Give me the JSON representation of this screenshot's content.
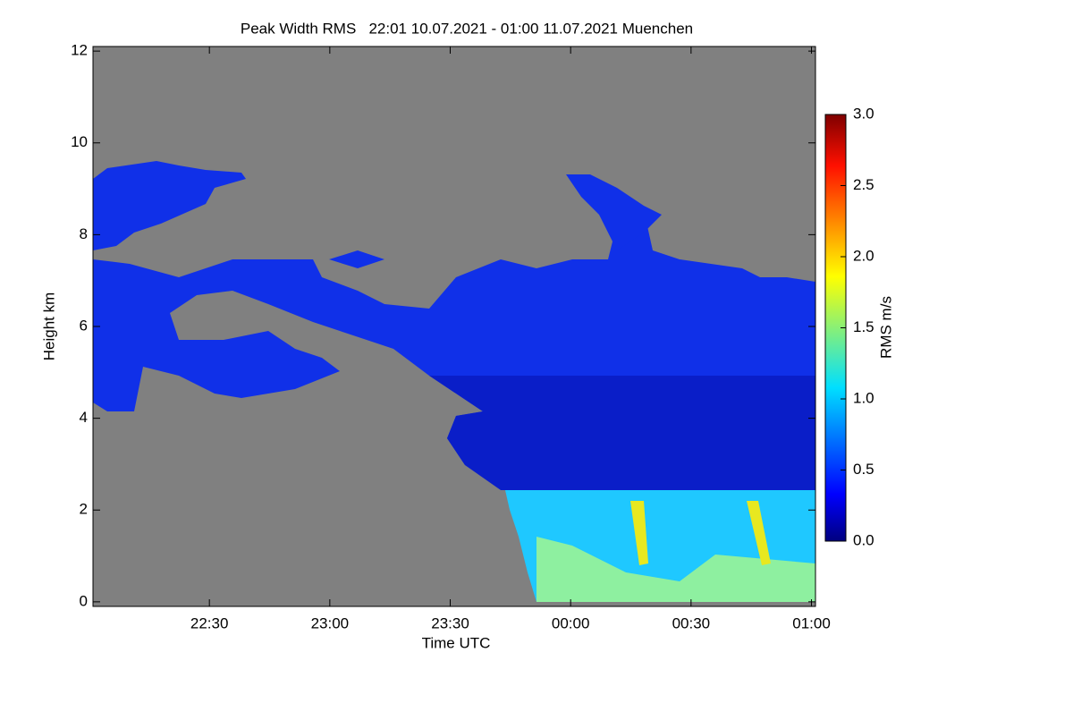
{
  "chart_data": {
    "type": "heatmap",
    "title": "Peak Width RMS   22:01 10.07.2021 - 01:00 11.07.2021 Muenchen",
    "xlabel": "Time UTC",
    "ylabel": "Height km",
    "colorbar_label": "RMS m/s",
    "xlim": [
      1,
      181
    ],
    "xticks": [
      {
        "value": 30,
        "label": "22:30"
      },
      {
        "value": 60,
        "label": "23:00"
      },
      {
        "value": 90,
        "label": "23:30"
      },
      {
        "value": 120,
        "label": "00:00"
      },
      {
        "value": 150,
        "label": "00:30"
      },
      {
        "value": 180,
        "label": "01:00"
      }
    ],
    "ylim": [
      -0.1,
      12.1
    ],
    "yticks": [
      0,
      2,
      4,
      6,
      8,
      10,
      12
    ],
    "zlim": [
      0,
      3
    ],
    "zticks": [
      {
        "value": 0,
        "label": "0.0"
      },
      {
        "value": 0.5,
        "label": "0.5"
      },
      {
        "value": 1,
        "label": "1.0"
      },
      {
        "value": 1.5,
        "label": "1.5"
      },
      {
        "value": 2,
        "label": "2.0"
      },
      {
        "value": 2.5,
        "label": "2.5"
      },
      {
        "value": 3,
        "label": "3.0"
      }
    ],
    "colormap": "jet",
    "background": "#808080"
  }
}
